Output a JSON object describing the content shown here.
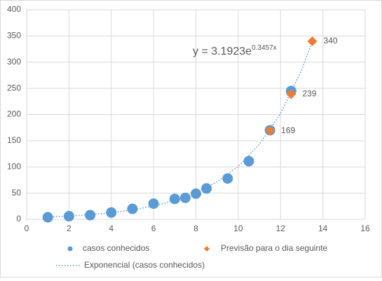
{
  "chart_data": {
    "type": "scatter",
    "equation": "y = 3.1923e",
    "equation_exponent": "0.3457x",
    "xlim": [
      0,
      16
    ],
    "xticks": [
      0,
      2,
      4,
      6,
      8,
      10,
      12,
      14,
      16
    ],
    "ylim": [
      0,
      400
    ],
    "yticks": [
      0,
      50,
      100,
      150,
      200,
      250,
      300,
      350,
      400
    ],
    "grid": true,
    "legend": "bottom",
    "series": [
      {
        "name": "casos conhecidos",
        "color": "#5b9bd5",
        "style": "circle",
        "x": [
          1,
          2,
          3,
          4,
          5,
          6,
          7,
          7.5,
          8,
          8.5,
          9.5,
          10.5,
          11.5,
          12.5
        ],
        "values": [
          4,
          6,
          8,
          13,
          20,
          30,
          39,
          41,
          49,
          59,
          78,
          111,
          170,
          245
        ]
      },
      {
        "name": "Previsão para o dia seguinte",
        "color": "#ed7d31",
        "style": "diamond",
        "x": [
          11.5,
          12.5,
          13.5
        ],
        "values": [
          169,
          239,
          340
        ],
        "value_labels": [
          "169",
          "239",
          "340"
        ]
      },
      {
        "name": "Exponencial (casos conhecidos)",
        "color": "#5b9bd5",
        "style": "dotted-line",
        "x": [
          1,
          2,
          3,
          4,
          5,
          6,
          7,
          8,
          9,
          10,
          11,
          12,
          13,
          13.5
        ],
        "values": [
          4.5,
          6.4,
          9,
          12.7,
          18,
          25.4,
          35.9,
          50.7,
          71.6,
          101.2,
          143,
          202,
          285.5,
          339.5
        ]
      }
    ]
  }
}
